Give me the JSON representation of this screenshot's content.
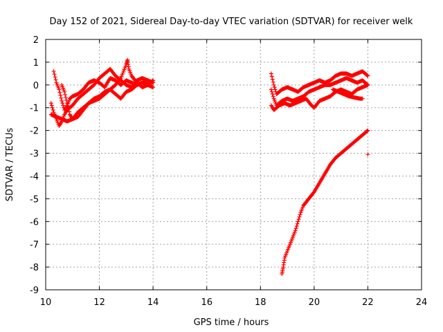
{
  "chart_data": {
    "type": "scatter",
    "title": "Day 152 of 2021, Sidereal Day-to-day VTEC variation (SDTVAR) for receiver welk",
    "xlabel": "GPS time / hours",
    "ylabel": "SDTVAR / TECUs",
    "xlim": [
      10,
      24
    ],
    "ylim": [
      -9,
      2
    ],
    "xticks": [
      10,
      12,
      14,
      16,
      18,
      20,
      22,
      24
    ],
    "yticks": [
      2,
      1,
      0,
      -1,
      -2,
      -3,
      -4,
      -5,
      -6,
      -7,
      -8,
      -9
    ],
    "grid": true,
    "marker": "+",
    "marker_color": "#ff0000",
    "series": [
      {
        "name": "track-a",
        "points": [
          [
            10.3,
            0.6
          ],
          [
            10.4,
            0.1
          ],
          [
            10.5,
            -0.2
          ],
          [
            10.6,
            -0.7
          ],
          [
            10.7,
            -1.1
          ],
          [
            10.8,
            -0.9
          ],
          [
            10.9,
            -0.6
          ],
          [
            11.0,
            -0.5
          ],
          [
            11.2,
            -0.4
          ],
          [
            11.4,
            -0.2
          ],
          [
            11.6,
            0.1
          ],
          [
            11.8,
            0.2
          ],
          [
            12.0,
            0.1
          ],
          [
            12.2,
            -0.1
          ],
          [
            12.4,
            0.3
          ],
          [
            12.6,
            0.2
          ],
          [
            12.8,
            0.0
          ],
          [
            13.0,
            0.2
          ],
          [
            13.2,
            0.1
          ],
          [
            13.4,
            0.0
          ],
          [
            13.6,
            0.1
          ],
          [
            13.8,
            0.2
          ],
          [
            14.0,
            0.1
          ]
        ]
      },
      {
        "name": "track-b",
        "points": [
          [
            10.2,
            -0.8
          ],
          [
            10.3,
            -1.2
          ],
          [
            10.4,
            -1.5
          ],
          [
            10.5,
            -1.8
          ],
          [
            10.6,
            -1.6
          ],
          [
            10.7,
            -1.3
          ],
          [
            10.8,
            -1.1
          ],
          [
            11.0,
            -0.9
          ],
          [
            11.2,
            -0.6
          ],
          [
            11.4,
            -0.4
          ],
          [
            11.6,
            -0.2
          ],
          [
            11.8,
            0.0
          ],
          [
            12.0,
            0.3
          ],
          [
            12.2,
            0.5
          ],
          [
            12.4,
            0.7
          ],
          [
            12.6,
            0.4
          ],
          [
            12.8,
            0.2
          ],
          [
            13.0,
            0.0
          ],
          [
            13.2,
            -0.1
          ],
          [
            13.4,
            0.2
          ],
          [
            13.6,
            0.3
          ],
          [
            13.8,
            0.2
          ],
          [
            14.0,
            0.1
          ]
        ]
      },
      {
        "name": "track-c",
        "points": [
          [
            10.2,
            -1.3
          ],
          [
            10.4,
            -1.4
          ],
          [
            10.6,
            -1.5
          ],
          [
            10.8,
            -1.6
          ],
          [
            11.0,
            -1.5
          ],
          [
            11.2,
            -1.2
          ],
          [
            11.4,
            -1.0
          ],
          [
            11.6,
            -0.8
          ],
          [
            11.8,
            -0.7
          ],
          [
            12.0,
            -0.6
          ],
          [
            12.2,
            -0.4
          ],
          [
            12.4,
            -0.2
          ],
          [
            12.6,
            0.0
          ],
          [
            12.8,
            0.3
          ],
          [
            13.0,
            0.9
          ],
          [
            13.05,
            1.1
          ],
          [
            13.1,
            0.7
          ],
          [
            13.2,
            0.4
          ],
          [
            13.4,
            0.1
          ],
          [
            13.6,
            -0.1
          ],
          [
            13.8,
            0.0
          ],
          [
            14.0,
            -0.1
          ]
        ]
      },
      {
        "name": "track-d",
        "points": [
          [
            10.6,
            0.0
          ],
          [
            10.7,
            -0.3
          ],
          [
            10.8,
            -0.8
          ],
          [
            10.9,
            -1.3
          ],
          [
            11.0,
            -1.5
          ],
          [
            11.2,
            -1.4
          ],
          [
            11.4,
            -1.1
          ],
          [
            11.6,
            -0.8
          ],
          [
            11.8,
            -0.6
          ],
          [
            12.0,
            -0.5
          ],
          [
            12.2,
            -0.3
          ],
          [
            12.4,
            -0.2
          ],
          [
            12.6,
            -0.4
          ],
          [
            12.8,
            -0.6
          ],
          [
            13.0,
            -0.3
          ],
          [
            13.2,
            -0.2
          ],
          [
            13.4,
            0.0
          ],
          [
            13.6,
            0.1
          ],
          [
            13.8,
            0.0
          ],
          [
            14.0,
            0.2
          ]
        ]
      },
      {
        "name": "track-e",
        "points": [
          [
            18.4,
            0.5
          ],
          [
            18.5,
            0.0
          ],
          [
            18.6,
            -0.4
          ],
          [
            18.8,
            -0.2
          ],
          [
            19.0,
            -0.1
          ],
          [
            19.2,
            -0.2
          ],
          [
            19.4,
            -0.3
          ],
          [
            19.6,
            -0.1
          ],
          [
            19.8,
            0.0
          ],
          [
            20.0,
            0.1
          ],
          [
            20.2,
            0.2
          ],
          [
            20.4,
            0.1
          ],
          [
            20.6,
            0.2
          ],
          [
            20.8,
            0.4
          ],
          [
            21.0,
            0.5
          ],
          [
            21.2,
            0.5
          ],
          [
            21.4,
            0.4
          ],
          [
            21.6,
            0.5
          ],
          [
            21.8,
            0.6
          ],
          [
            22.0,
            0.4
          ]
        ]
      },
      {
        "name": "track-f",
        "points": [
          [
            18.4,
            -0.2
          ],
          [
            18.5,
            -0.6
          ],
          [
            18.6,
            -0.9
          ],
          [
            18.8,
            -0.7
          ],
          [
            19.0,
            -0.6
          ],
          [
            19.2,
            -0.7
          ],
          [
            19.4,
            -0.6
          ],
          [
            19.6,
            -0.5
          ],
          [
            19.8,
            -0.3
          ],
          [
            20.0,
            -0.2
          ],
          [
            20.2,
            -0.1
          ],
          [
            20.4,
            0.0
          ],
          [
            20.6,
            0.0
          ],
          [
            20.8,
            0.1
          ],
          [
            21.0,
            0.2
          ],
          [
            21.2,
            0.3
          ],
          [
            21.4,
            0.2
          ],
          [
            21.6,
            0.1
          ],
          [
            21.8,
            0.2
          ],
          [
            22.0,
            0.0
          ]
        ]
      },
      {
        "name": "track-g",
        "points": [
          [
            18.4,
            -0.9
          ],
          [
            18.5,
            -1.1
          ],
          [
            18.7,
            -0.9
          ],
          [
            18.9,
            -0.8
          ],
          [
            19.1,
            -0.9
          ],
          [
            19.3,
            -0.8
          ],
          [
            19.5,
            -0.7
          ],
          [
            19.7,
            -0.6
          ],
          [
            19.9,
            -0.9
          ],
          [
            20.0,
            -1.0
          ],
          [
            20.2,
            -0.7
          ],
          [
            20.4,
            -0.6
          ],
          [
            20.6,
            -0.5
          ],
          [
            20.8,
            -0.3
          ],
          [
            21.0,
            -0.2
          ],
          [
            21.2,
            -0.3
          ],
          [
            21.4,
            -0.4
          ],
          [
            21.6,
            -0.2
          ],
          [
            21.8,
            -0.1
          ],
          [
            22.0,
            0.0
          ]
        ]
      },
      {
        "name": "track-h",
        "points": [
          [
            20.7,
            -0.2
          ],
          [
            20.9,
            -0.3
          ],
          [
            21.1,
            -0.4
          ],
          [
            21.3,
            -0.5
          ],
          [
            21.5,
            -0.55
          ],
          [
            21.7,
            -0.6
          ],
          [
            21.8,
            -0.6
          ]
        ]
      },
      {
        "name": "track-i",
        "points": [
          [
            18.8,
            -8.3
          ],
          [
            18.85,
            -8.0
          ],
          [
            18.9,
            -7.6
          ],
          [
            19.0,
            -7.3
          ],
          [
            19.1,
            -7.0
          ],
          [
            19.2,
            -6.7
          ],
          [
            19.3,
            -6.4
          ],
          [
            19.4,
            -6.0
          ],
          [
            19.5,
            -5.6
          ],
          [
            19.6,
            -5.3
          ],
          [
            19.8,
            -5.0
          ],
          [
            20.0,
            -4.7
          ],
          [
            20.2,
            -4.3
          ],
          [
            20.4,
            -3.9
          ],
          [
            20.6,
            -3.5
          ],
          [
            20.8,
            -3.2
          ],
          [
            21.0,
            -3.0
          ],
          [
            21.2,
            -2.8
          ],
          [
            21.4,
            -2.6
          ],
          [
            21.6,
            -2.4
          ],
          [
            21.8,
            -2.2
          ],
          [
            22.0,
            -2.0
          ]
        ]
      },
      {
        "name": "outlier",
        "points": [
          [
            22.0,
            -3.05
          ]
        ]
      }
    ]
  }
}
